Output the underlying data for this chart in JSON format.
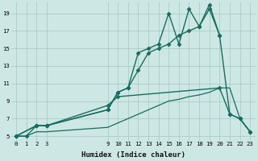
{
  "xlabel": "Humidex (Indice chaleur)",
  "bg_color": "#cde8e4",
  "grid_color": "#aaccc8",
  "line_color": "#1a6b60",
  "xlim": [
    -0.5,
    23.5
  ],
  "ylim": [
    4.5,
    20.2
  ],
  "xticks": [
    0,
    1,
    2,
    3,
    9,
    10,
    11,
    12,
    13,
    14,
    15,
    16,
    17,
    18,
    19,
    20,
    21,
    22,
    23
  ],
  "yticks": [
    5,
    7,
    9,
    11,
    13,
    15,
    17,
    19
  ],
  "series": [
    {
      "x": [
        0,
        1,
        2,
        3,
        9,
        10,
        11,
        12,
        13,
        14,
        15,
        16,
        17,
        18,
        19,
        20,
        21,
        22,
        23
      ],
      "y": [
        5,
        5,
        6.2,
        6.2,
        8.0,
        10.0,
        10.5,
        14.5,
        15.0,
        15.5,
        19.0,
        15.5,
        19.5,
        17.5,
        20.0,
        16.5,
        7.5,
        7.0,
        5.5
      ],
      "marker": "D",
      "markersize": 2.5,
      "linewidth": 1.0
    },
    {
      "x": [
        0,
        2,
        3,
        9,
        10,
        11,
        12,
        13,
        14,
        15,
        16,
        17,
        18,
        19,
        20
      ],
      "y": [
        5,
        6.2,
        6.2,
        8.0,
        10.0,
        10.5,
        12.5,
        14.5,
        15.0,
        15.5,
        16.5,
        17.0,
        17.5,
        19.5,
        16.5
      ],
      "marker": "D",
      "markersize": 2.5,
      "linewidth": 1.0
    },
    {
      "x": [
        0,
        2,
        3,
        9,
        10,
        20,
        21,
        22,
        23
      ],
      "y": [
        5,
        6.2,
        6.2,
        8.5,
        9.5,
        10.5,
        7.5,
        7.0,
        5.5
      ],
      "marker": "D",
      "markersize": 2.5,
      "linewidth": 1.0
    },
    {
      "x": [
        0,
        1,
        2,
        3,
        9,
        10,
        11,
        12,
        13,
        14,
        15,
        16,
        17,
        18,
        19,
        20,
        21,
        22,
        23
      ],
      "y": [
        5,
        5,
        5.5,
        5.5,
        6.0,
        6.5,
        7.0,
        7.5,
        8.0,
        8.5,
        9.0,
        9.2,
        9.5,
        9.7,
        10.0,
        10.5,
        10.5,
        7.0,
        5.5
      ],
      "marker": null,
      "markersize": 0,
      "linewidth": 0.9
    }
  ],
  "tick_fontsize": 5.2,
  "xlabel_fontsize": 6.5
}
